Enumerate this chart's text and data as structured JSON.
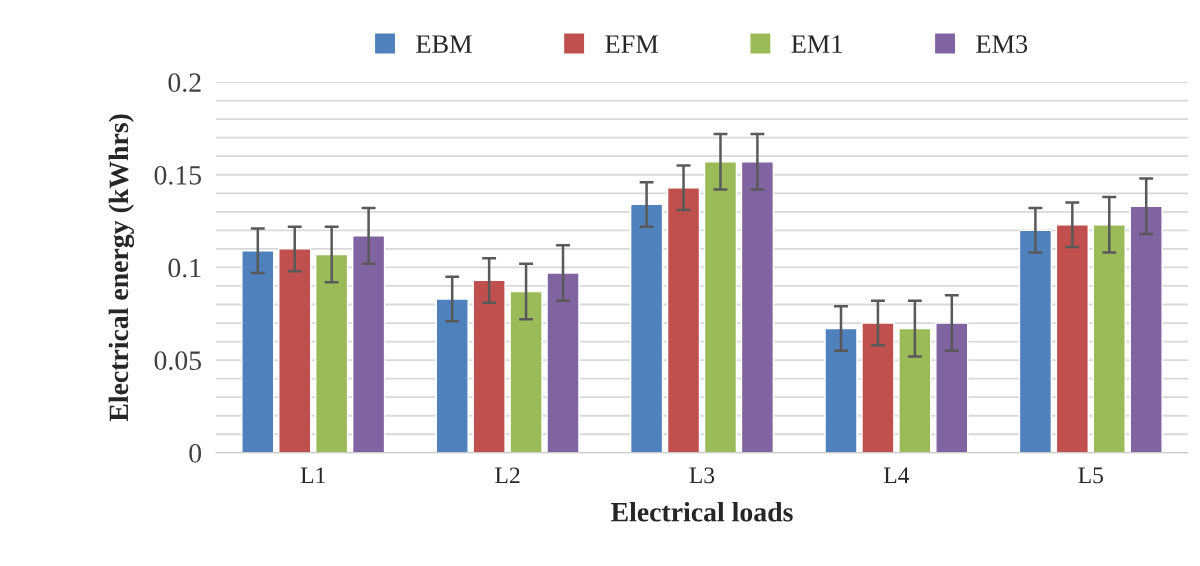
{
  "chart_data": {
    "type": "bar",
    "xlabel": "Electrical loads",
    "ylabel": "Electrical energy (kWhrs)",
    "categories": [
      "L1",
      "L2",
      "L3",
      "L4",
      "L5"
    ],
    "series": [
      {
        "name": "EBM",
        "color": "#4f81bd",
        "values": [
          0.109,
          0.083,
          0.134,
          0.067,
          0.12
        ],
        "errors": [
          0.012,
          0.012,
          0.012,
          0.012,
          0.012
        ]
      },
      {
        "name": "EFM",
        "color": "#c0504d",
        "values": [
          0.11,
          0.093,
          0.143,
          0.07,
          0.123
        ],
        "errors": [
          0.012,
          0.012,
          0.012,
          0.012,
          0.012
        ]
      },
      {
        "name": "EM1",
        "color": "#9bbb59",
        "values": [
          0.107,
          0.087,
          0.157,
          0.067,
          0.123
        ],
        "errors": [
          0.015,
          0.015,
          0.015,
          0.015,
          0.015
        ]
      },
      {
        "name": "EM3",
        "color": "#8064a2",
        "values": [
          0.117,
          0.097,
          0.157,
          0.07,
          0.133
        ],
        "errors": [
          0.015,
          0.015,
          0.015,
          0.015,
          0.015
        ]
      }
    ],
    "ylim": [
      0,
      0.2
    ],
    "yticks": [
      0,
      {
        "value": 0.01,
        "label": null
      },
      {
        "value": 0.02,
        "label": null
      },
      {
        "value": 0.03,
        "label": null
      },
      {
        "value": 0.04,
        "label": null
      },
      0.05,
      {
        "value": 0.06,
        "label": null
      },
      {
        "value": 0.07,
        "label": null
      },
      {
        "value": 0.08,
        "label": null
      },
      {
        "value": 0.09,
        "label": null
      },
      0.1,
      {
        "value": 0.11,
        "label": null
      },
      {
        "value": 0.12,
        "label": null
      },
      {
        "value": 0.13,
        "label": null
      },
      {
        "value": 0.14,
        "label": null
      },
      0.15,
      {
        "value": 0.16,
        "label": null
      },
      {
        "value": 0.17,
        "label": null
      },
      {
        "value": 0.18,
        "label": null
      },
      {
        "value": 0.19,
        "label": null
      },
      0.2
    ],
    "grid": "y",
    "legend": "top"
  }
}
